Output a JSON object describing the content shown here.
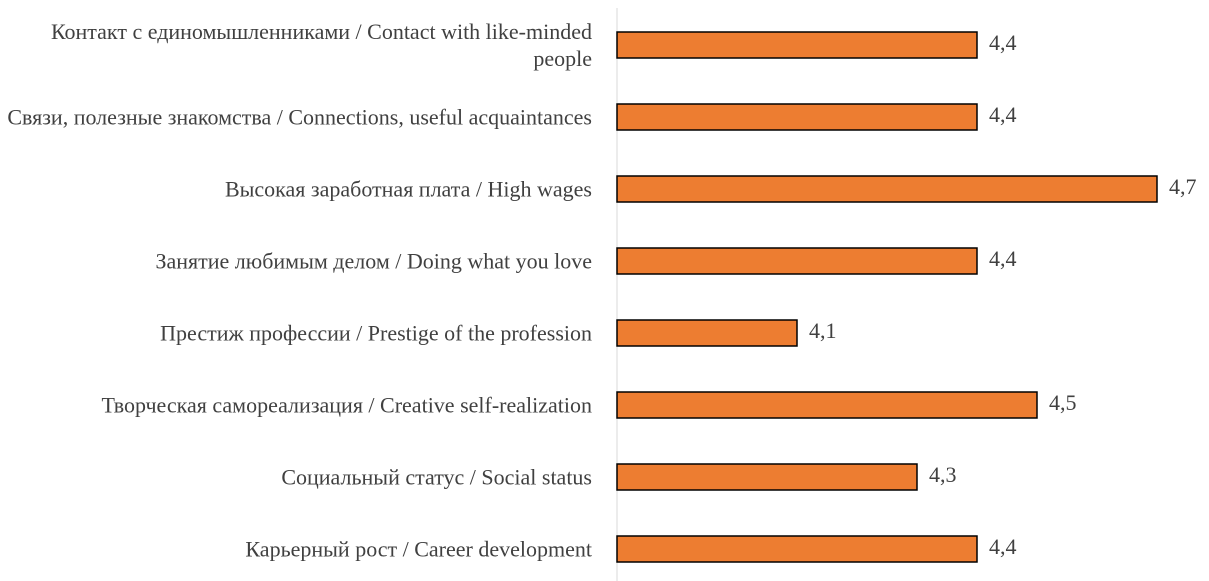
{
  "chart_data": {
    "type": "hbar",
    "categories": [
      "Контакт с единомышленниками / Contact with like-minded people",
      "Связи, полезные знакомства / Connections, useful acquaintances",
      "Высокая заработная плата / High wages",
      "Занятие любимым делом / Doing what you love",
      "Престиж профессии / Prestige of the profession",
      "Творческая самореализация / Creative self-realization",
      "Социальный статус / Social status",
      "Карьерный рост / Career development"
    ],
    "values": [
      4.4,
      4.4,
      4.7,
      4.4,
      4.1,
      4.5,
      4.3,
      4.4
    ],
    "value_labels": [
      "4,4",
      "4,4",
      "4,7",
      "4,4",
      "4,1",
      "4,5",
      "4,3",
      "4,4"
    ],
    "color": "#ed7d31",
    "xlim": [
      3.8,
      4.8
    ]
  }
}
